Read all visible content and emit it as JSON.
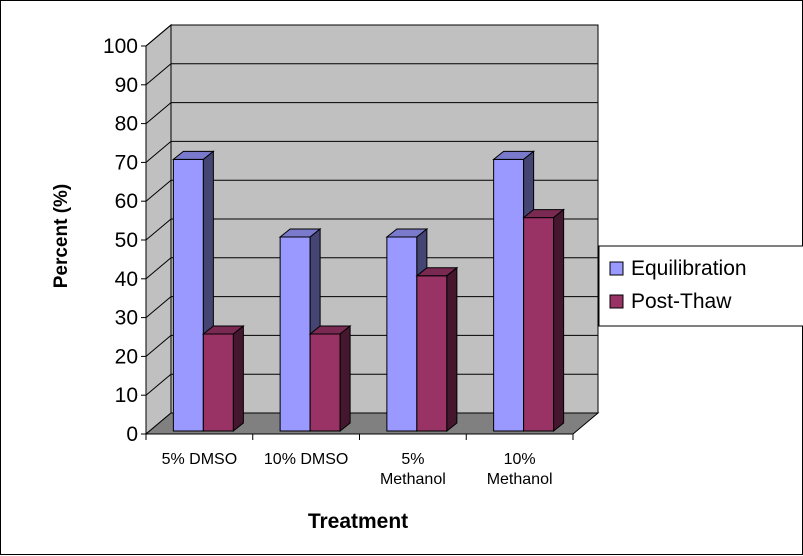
{
  "chart_data": {
    "type": "bar",
    "style": "3d-clustered-column",
    "categories": [
      [
        "5% DMSO"
      ],
      [
        "10% DMSO"
      ],
      [
        "5%",
        "Methanol"
      ],
      [
        "10%",
        "Methanol"
      ]
    ],
    "series": [
      {
        "name": "Equilibration",
        "values": [
          70,
          50,
          50,
          70
        ],
        "color": "#9999FF"
      },
      {
        "name": "Post-Thaw",
        "values": [
          25,
          25,
          40,
          55
        ],
        "color": "#993366"
      }
    ],
    "xlabel": "Treatment",
    "ylabel": "Percent (%)",
    "ylim": [
      0,
      100
    ],
    "yticks": [
      0,
      10,
      20,
      30,
      40,
      50,
      60,
      70,
      80,
      90,
      100
    ],
    "grid": true,
    "legend": "right",
    "colors": {
      "wall": "#C0C0C0",
      "floor": "#808080",
      "grid": "#000000"
    }
  }
}
